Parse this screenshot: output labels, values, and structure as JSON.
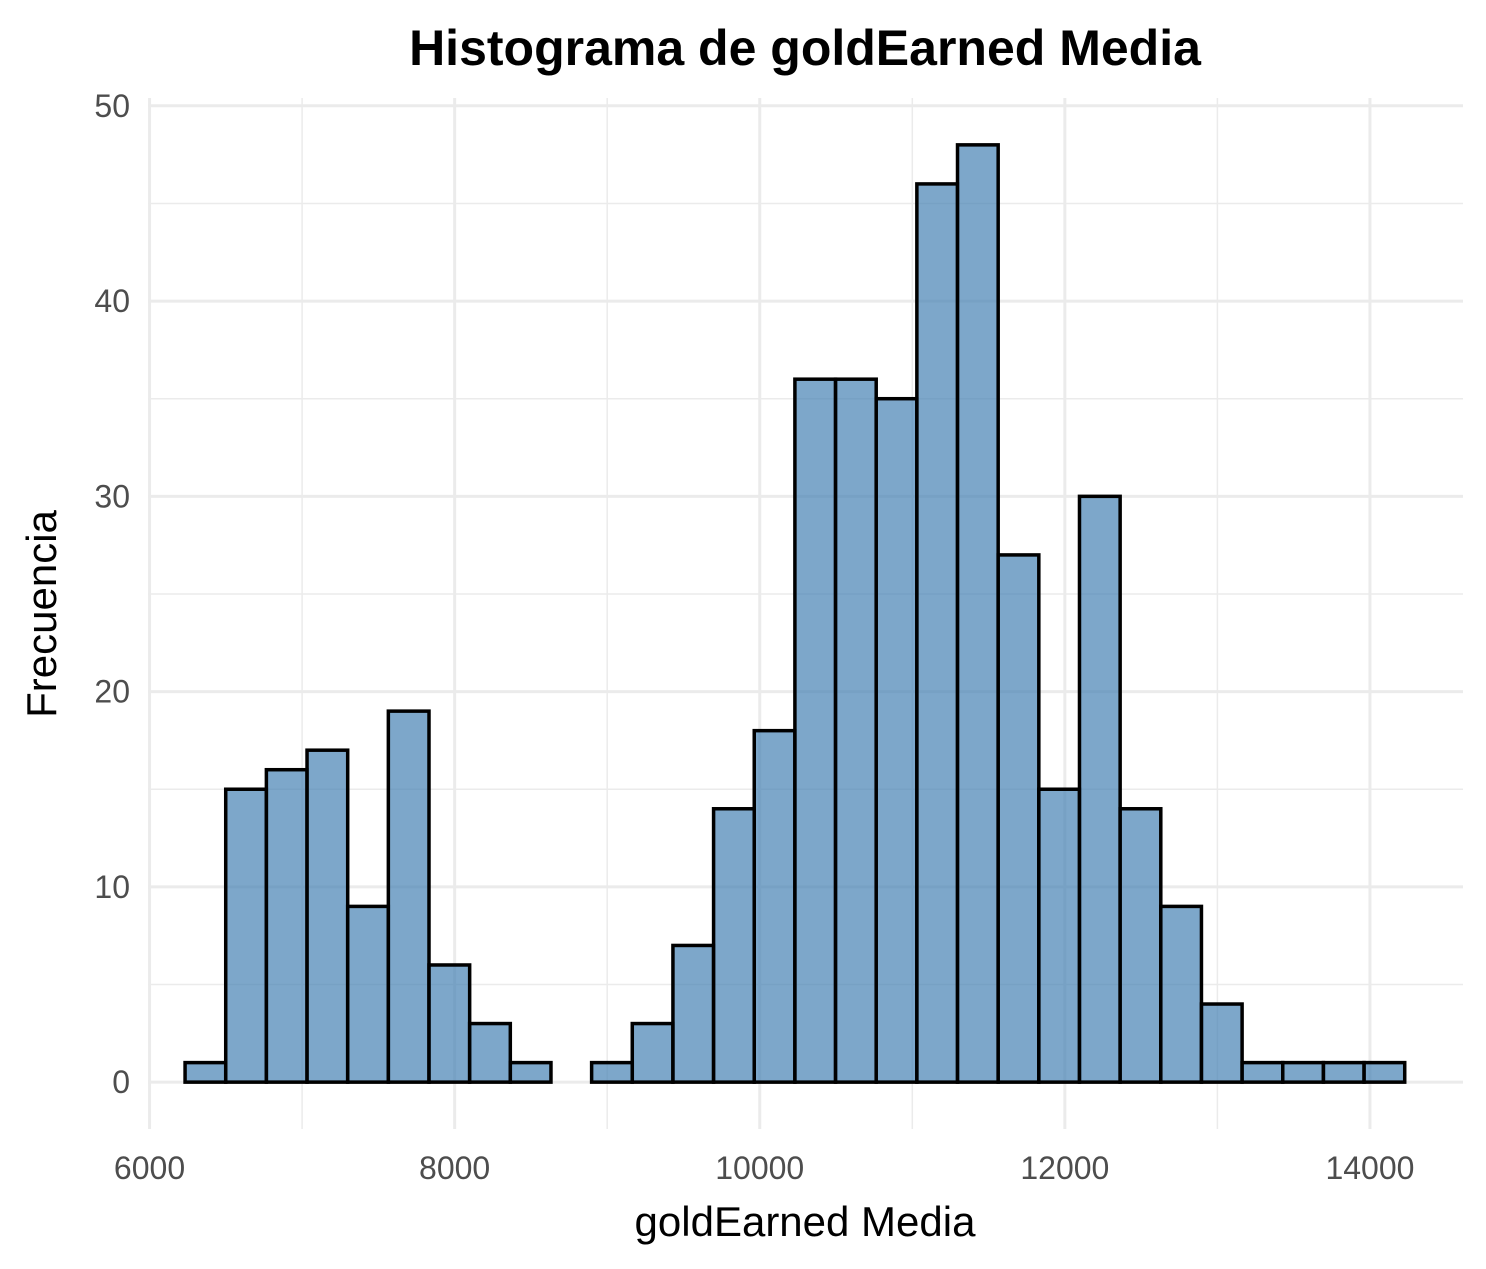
{
  "chart_data": {
    "type": "bar",
    "title": "Histograma de goldEarned Media",
    "xlabel": "goldEarned Media",
    "ylabel": "Frecuencia",
    "xlim": [
      5990,
      14610
    ],
    "ylim": [
      -2.4,
      50.4
    ],
    "x_ticks": [
      6000,
      8000,
      10000,
      12000,
      14000
    ],
    "x_tick_labels": [
      "6000",
      "8000",
      "10000",
      "12000",
      "14000"
    ],
    "y_ticks": [
      0,
      10,
      20,
      30,
      40,
      50
    ],
    "y_tick_labels": [
      "0",
      "10",
      "20",
      "30",
      "40",
      "50"
    ],
    "bin_start": 6233,
    "bin_width": 266.5,
    "values": [
      1,
      15,
      16,
      17,
      9,
      19,
      6,
      3,
      1,
      0,
      1,
      3,
      7,
      14,
      18,
      36,
      36,
      35,
      46,
      48,
      27,
      15,
      30,
      14,
      9,
      4,
      1,
      1,
      1,
      1
    ],
    "grid": true,
    "legend": "none",
    "colors": {
      "fill": "#4682b4",
      "fill_opacity": 0.7,
      "stroke": "#000000",
      "grid": "#ebebeb"
    }
  }
}
